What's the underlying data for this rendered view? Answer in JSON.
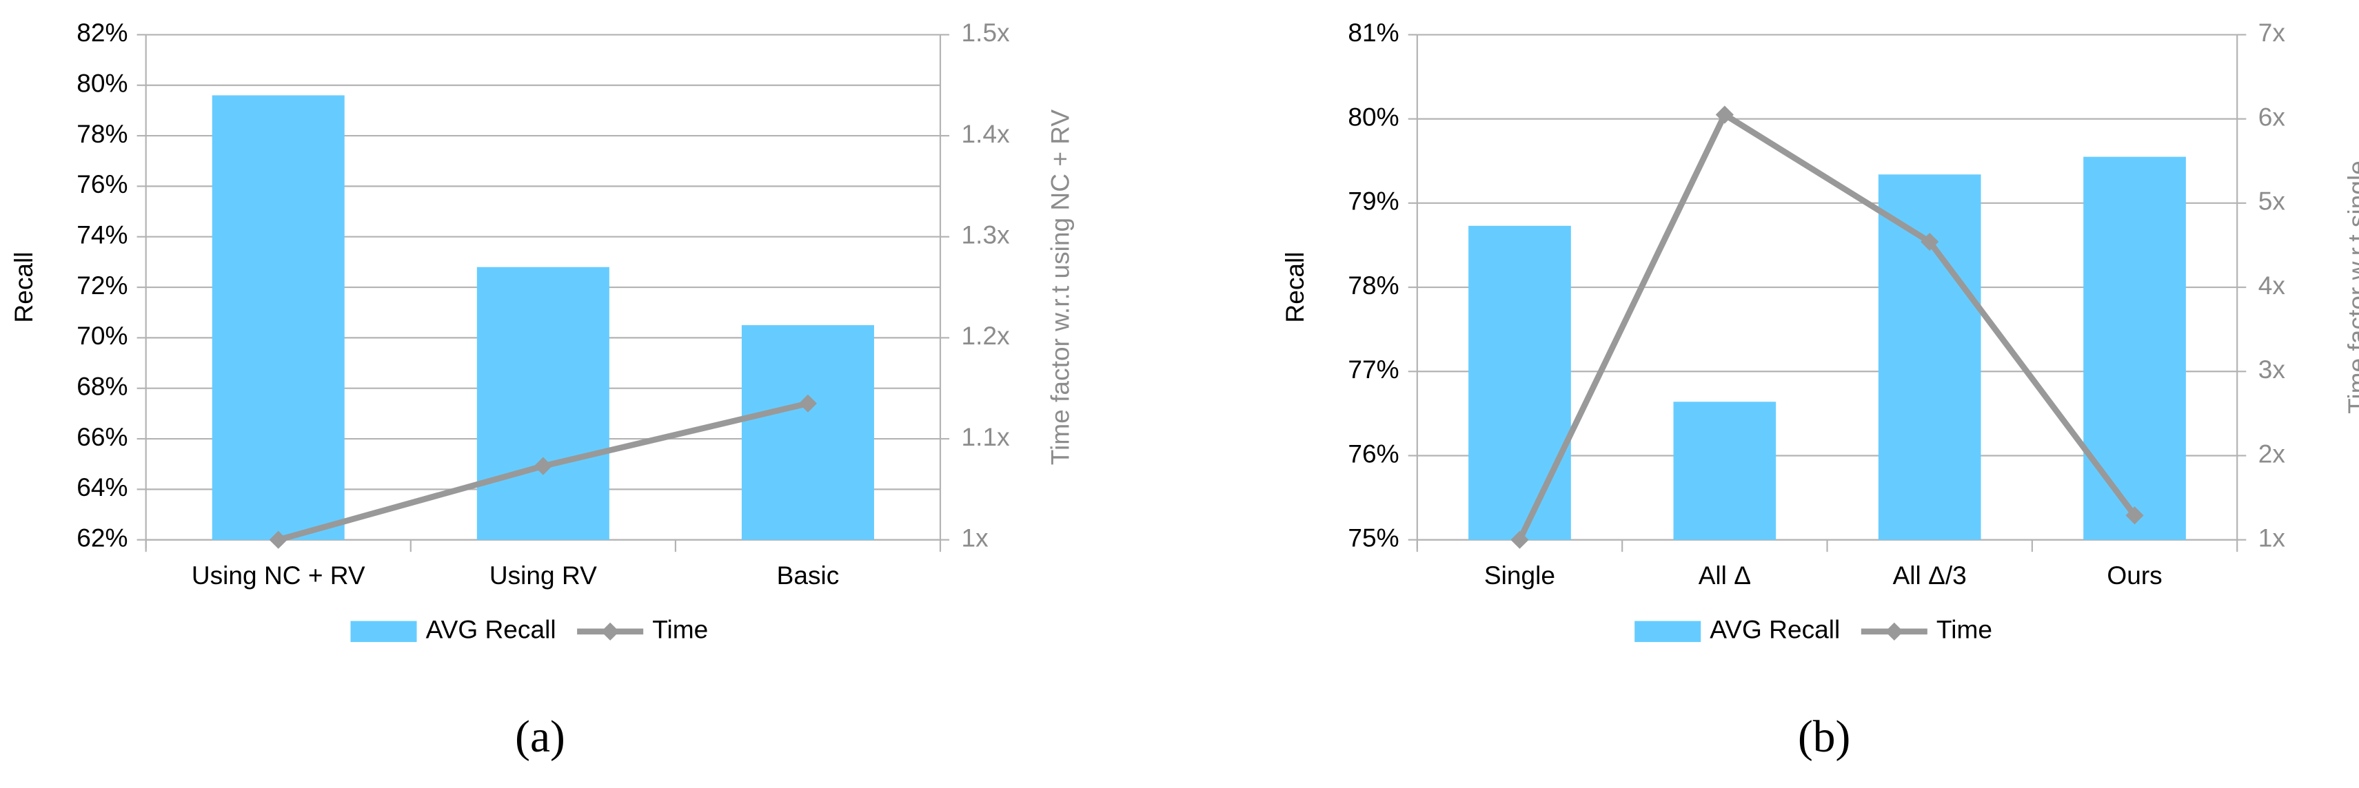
{
  "chart_data": [
    {
      "type": "bar",
      "caption": "(a)",
      "ylabel": "Recall",
      "y2label": "Time factor w.r.t using NC + RV",
      "categories": [
        "Using NC + RV",
        "Using RV",
        "Basic"
      ],
      "series": [
        {
          "name": "AVG Recall",
          "type": "bar",
          "color": "#66ccff",
          "values": [
            79.6,
            72.8,
            70.5
          ]
        },
        {
          "name": "Time",
          "type": "line",
          "axis": "y2",
          "color": "#999999",
          "values": [
            1.0,
            1.073,
            1.135
          ]
        }
      ],
      "ylim": [
        62,
        82
      ],
      "yticks": [
        {
          "value": 62,
          "label": "62%"
        },
        {
          "value": 64,
          "label": "64%"
        },
        {
          "value": 66,
          "label": "66%"
        },
        {
          "value": 68,
          "label": "68%"
        },
        {
          "value": 70,
          "label": "70%"
        },
        {
          "value": 72,
          "label": "72%"
        },
        {
          "value": 74,
          "label": "74%"
        },
        {
          "value": 76,
          "label": "76%"
        },
        {
          "value": 78,
          "label": "78%"
        },
        {
          "value": 80,
          "label": "80%"
        },
        {
          "value": 82,
          "label": "82%"
        }
      ],
      "y2lim": [
        1,
        1.5
      ],
      "y2ticks": [
        {
          "value": 1,
          "label": "1x"
        },
        {
          "value": 1.1,
          "label": "1.1x"
        },
        {
          "value": 1.2,
          "label": "1.2x"
        },
        {
          "value": 1.3,
          "label": "1.3x"
        },
        {
          "value": 1.4,
          "label": "1.4x"
        },
        {
          "value": 1.5,
          "label": "1.5x"
        }
      ],
      "grid": true,
      "legend": "bottom"
    },
    {
      "type": "bar",
      "caption": "(b)",
      "ylabel": "Recall",
      "y2label": "Time factor w.r.t single",
      "categories": [
        "Single",
        "All Δ",
        "All Δ/3",
        "Ours"
      ],
      "series": [
        {
          "name": "AVG Recall",
          "type": "bar",
          "color": "#66ccff",
          "values": [
            78.73,
            76.64,
            79.34,
            79.55
          ]
        },
        {
          "name": "Time",
          "type": "line",
          "axis": "y2",
          "color": "#999999",
          "values": [
            1.0,
            6.05,
            4.54,
            1.29
          ]
        }
      ],
      "ylim": [
        75,
        81
      ],
      "yticks": [
        {
          "value": 75,
          "label": "75%"
        },
        {
          "value": 76,
          "label": "76%"
        },
        {
          "value": 77,
          "label": "77%"
        },
        {
          "value": 78,
          "label": "78%"
        },
        {
          "value": 79,
          "label": "79%"
        },
        {
          "value": 80,
          "label": "80%"
        },
        {
          "value": 81,
          "label": "81%"
        }
      ],
      "y2lim": [
        1,
        7
      ],
      "y2ticks": [
        {
          "value": 1,
          "label": "1x"
        },
        {
          "value": 2,
          "label": "2x"
        },
        {
          "value": 3,
          "label": "3x"
        },
        {
          "value": 4,
          "label": "4x"
        },
        {
          "value": 5,
          "label": "5x"
        },
        {
          "value": 6,
          "label": "6x"
        },
        {
          "value": 7,
          "label": "7x"
        }
      ],
      "grid": true,
      "legend": "bottom"
    }
  ]
}
